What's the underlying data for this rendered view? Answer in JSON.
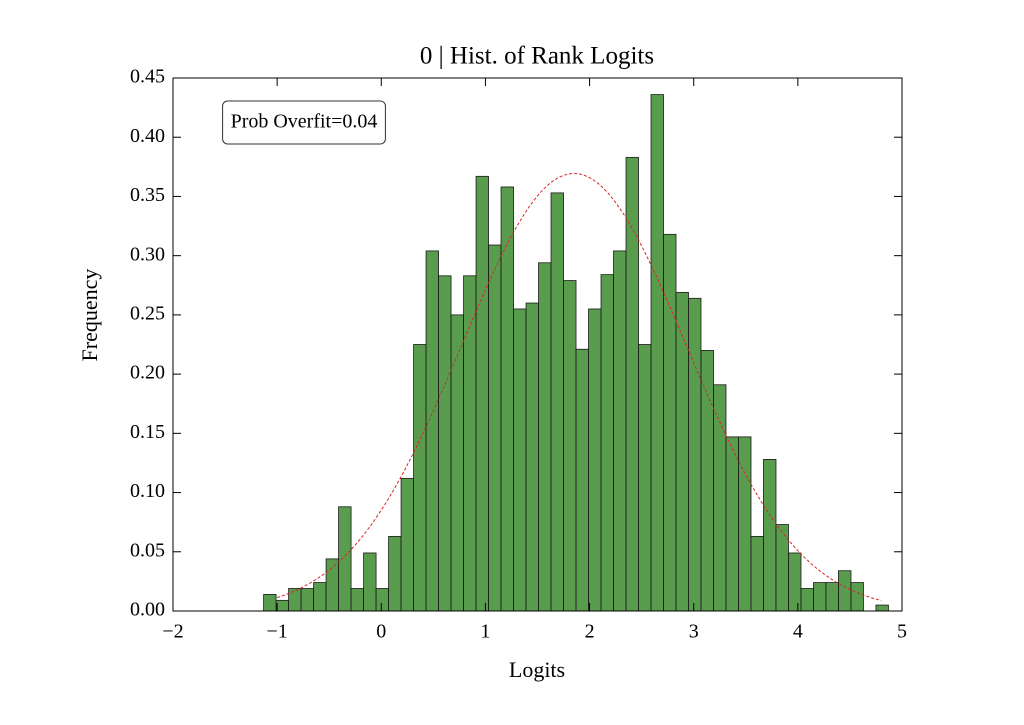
{
  "chart_data": {
    "type": "histogram",
    "title": "0 | Hist. of Rank Logits",
    "x_label": "Logits",
    "y_label": "Frequency",
    "annotation": "Prob Overfit=0.04",
    "color": "#3d8b2f",
    "bins": [
      -1.13,
      -1.01,
      -0.89,
      -0.77,
      -0.65,
      -0.53,
      -0.41,
      -0.29,
      -0.17,
      -0.05,
      0.07,
      0.19,
      0.31,
      0.43,
      0.55,
      0.67,
      0.79,
      0.91,
      1.03,
      1.15,
      1.27,
      1.39,
      1.51,
      1.63,
      1.75,
      1.87,
      1.99,
      2.11,
      2.23,
      2.35,
      2.47,
      2.59,
      2.71,
      2.83,
      2.95,
      3.07,
      3.19,
      3.31,
      3.43,
      3.55,
      3.67,
      3.79,
      3.91,
      4.03,
      4.15,
      4.27,
      4.39,
      4.51,
      4.63,
      4.75,
      4.87
    ],
    "values": [
      0.014,
      0.009,
      0.019,
      0.019,
      0.024,
      0.044,
      0.088,
      0.019,
      0.049,
      0.019,
      0.063,
      0.112,
      0.225,
      0.304,
      0.283,
      0.25,
      0.283,
      0.367,
      0.309,
      0.358,
      0.255,
      0.26,
      0.294,
      0.353,
      0.279,
      0.221,
      0.255,
      0.284,
      0.304,
      0.383,
      0.225,
      0.436,
      0.318,
      0.269,
      0.264,
      0.22,
      0.191,
      0.147,
      0.147,
      0.063,
      0.128,
      0.073,
      0.049,
      0.019,
      0.024,
      0.024,
      0.034,
      0.024,
      0,
      0.005
    ],
    "fit": {
      "color": "#d62728",
      "mean": 1.85,
      "std": 1.08,
      "xrange": [
        -1,
        4.8
      ]
    },
    "xlim": [
      -2,
      5
    ],
    "xticks": [
      {
        "value": -2,
        "label": "−2"
      },
      {
        "value": -1,
        "label": "−1"
      },
      0,
      1,
      2,
      3,
      4,
      5
    ],
    "ylim": [
      0,
      0.45
    ],
    "yticks": [
      {
        "value": 0,
        "label": "0.00"
      },
      {
        "value": 0.05,
        "label": "0.05"
      },
      {
        "value": 0.1,
        "label": "0.10"
      },
      {
        "value": 0.15,
        "label": "0.15"
      },
      {
        "value": 0.2,
        "label": "0.20"
      },
      {
        "value": 0.25,
        "label": "0.25"
      },
      {
        "value": 0.3,
        "label": "0.30"
      },
      {
        "value": 0.35,
        "label": "0.35"
      },
      {
        "value": 0.4,
        "label": "0.40"
      },
      {
        "value": 0.45,
        "label": "0.45"
      }
    ]
  }
}
